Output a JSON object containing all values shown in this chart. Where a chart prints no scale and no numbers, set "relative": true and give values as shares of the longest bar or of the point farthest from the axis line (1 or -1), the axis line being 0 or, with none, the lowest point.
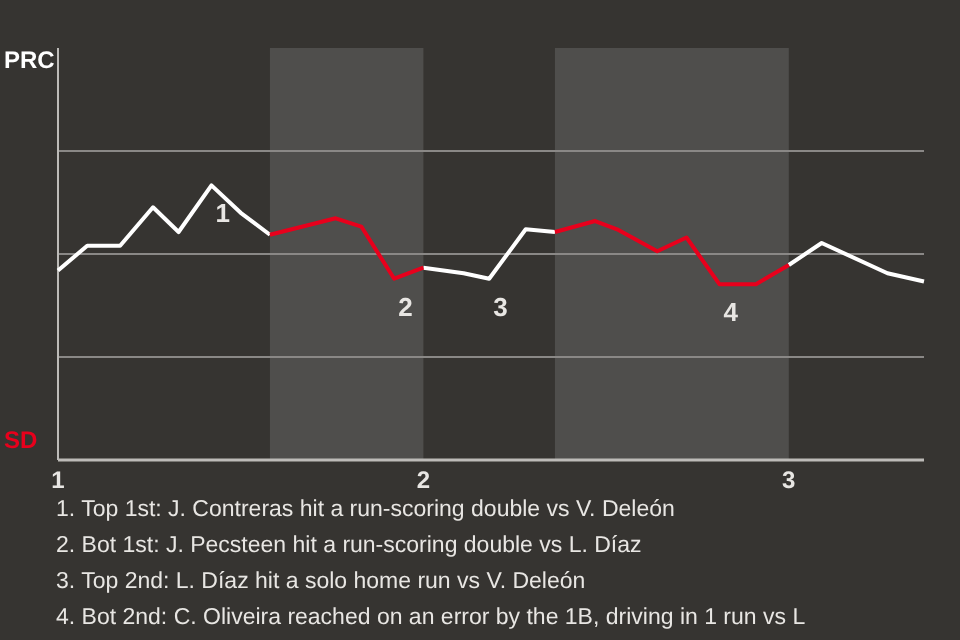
{
  "chart_data": {
    "type": "line",
    "relative": true,
    "x": [
      1.0,
      1.08,
      1.17,
      1.26,
      1.33,
      1.42,
      1.5,
      1.58,
      1.67,
      1.76,
      1.83,
      1.92,
      2.0,
      2.11,
      2.18,
      2.28,
      2.36,
      2.47,
      2.53,
      2.64,
      2.72,
      2.81,
      2.91,
      3.0,
      3.09,
      3.27,
      3.37
    ],
    "series": [
      {
        "color": "#ffffff",
        "values": [
          0.69,
          0.78,
          0.78,
          0.92,
          0.83,
          1.0,
          0.9,
          0.82,
          null,
          null,
          null,
          null,
          0.7,
          0.68,
          0.66,
          0.84,
          0.83,
          null,
          null,
          null,
          null,
          null,
          null,
          0.71,
          0.79,
          0.68,
          0.65
        ]
      },
      {
        "color": "#e8001c",
        "values": [
          null,
          null,
          null,
          null,
          null,
          null,
          null,
          0.82,
          0.85,
          0.88,
          0.85,
          0.66,
          0.7,
          null,
          null,
          null,
          0.83,
          0.87,
          0.84,
          0.76,
          0.81,
          0.64,
          0.64,
          0.71,
          null,
          null,
          null
        ]
      }
    ],
    "xlim": [
      1,
      3.37
    ],
    "xticks": [
      1,
      2,
      3
    ],
    "bands": [
      {
        "axis": "x",
        "from": 1.58,
        "to": 2,
        "color": "#4f4e4c"
      },
      {
        "axis": "x",
        "from": 2.36,
        "to": 3,
        "color": "#4f4e4c"
      }
    ],
    "ref_lines": [
      {
        "axis": "y",
        "value": 0.375,
        "color": "#8a8886"
      },
      {
        "axis": "y",
        "value": 0.75,
        "color": "#8a8886"
      },
      {
        "axis": "y",
        "value": 1.125,
        "color": "#8a8886"
      }
    ],
    "marker": "none",
    "line_style": "solid",
    "annotations": [
      "PRC",
      "SD",
      {
        "text": "1",
        "x": 1.42,
        "y": 1.0
      },
      {
        "text": "2",
        "x": 1.92,
        "y": 0.66
      },
      {
        "text": "3",
        "x": 2.18,
        "y": 0.66
      },
      {
        "text": "4",
        "x": 2.81,
        "y": 0.64
      },
      "1. Top 1st: J. Contreras hit a run-scoring double vs V. Deleón",
      "2. Bot 1st: J. Pecsteen hit a run-scoring double vs L. Díaz",
      "3. Top 2nd: L. Díaz hit a solo home run vs V. Deleón",
      "4. Bot 2nd: C. Oliveira reached on an error by the 1B, driving in 1 run vs L"
    ]
  }
}
